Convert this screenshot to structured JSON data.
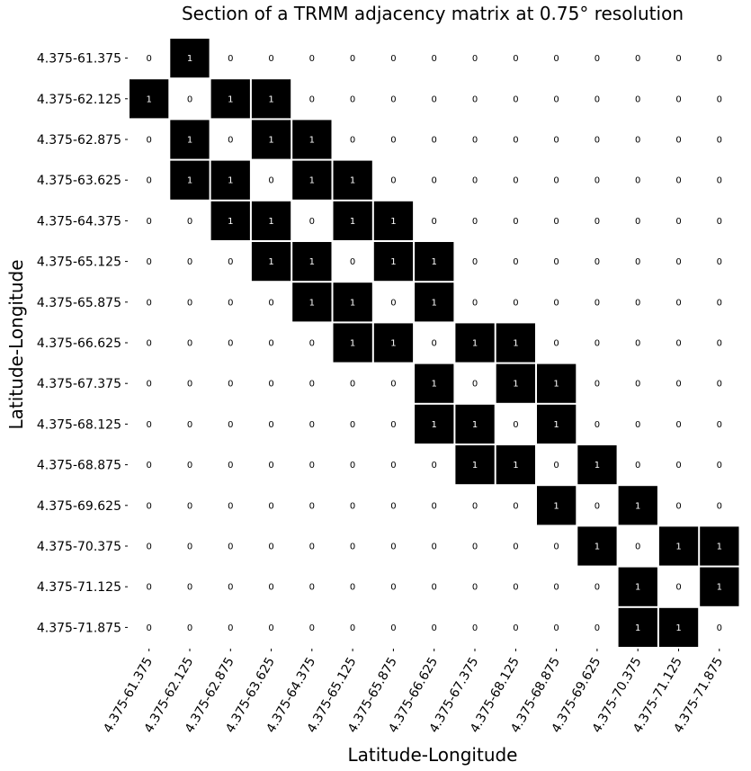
{
  "chart_data": {
    "type": "heatmap",
    "title": "Section of a TRMM adjacency matrix at 0.75° resolution",
    "xlabel": "Latitude-Longitude",
    "ylabel": "Latitude-Longitude",
    "labels": [
      "4.375-61.375",
      "4.375-62.125",
      "4.375-62.875",
      "4.375-63.625",
      "4.375-64.375",
      "4.375-65.125",
      "4.375-65.875",
      "4.375-66.625",
      "4.375-67.375",
      "4.375-68.125",
      "4.375-68.875",
      "4.375-69.625",
      "4.375-70.375",
      "4.375-71.125",
      "4.375-71.875"
    ],
    "matrix": [
      [
        0,
        1,
        0,
        0,
        0,
        0,
        0,
        0,
        0,
        0,
        0,
        0,
        0,
        0,
        0
      ],
      [
        1,
        0,
        1,
        1,
        0,
        0,
        0,
        0,
        0,
        0,
        0,
        0,
        0,
        0,
        0
      ],
      [
        0,
        1,
        0,
        1,
        1,
        0,
        0,
        0,
        0,
        0,
        0,
        0,
        0,
        0,
        0
      ],
      [
        0,
        1,
        1,
        0,
        1,
        1,
        0,
        0,
        0,
        0,
        0,
        0,
        0,
        0,
        0
      ],
      [
        0,
        0,
        1,
        1,
        0,
        1,
        1,
        0,
        0,
        0,
        0,
        0,
        0,
        0,
        0
      ],
      [
        0,
        0,
        0,
        1,
        1,
        0,
        1,
        1,
        0,
        0,
        0,
        0,
        0,
        0,
        0
      ],
      [
        0,
        0,
        0,
        0,
        1,
        1,
        0,
        1,
        0,
        0,
        0,
        0,
        0,
        0,
        0
      ],
      [
        0,
        0,
        0,
        0,
        0,
        1,
        1,
        0,
        1,
        1,
        0,
        0,
        0,
        0,
        0
      ],
      [
        0,
        0,
        0,
        0,
        0,
        0,
        0,
        1,
        0,
        1,
        1,
        0,
        0,
        0,
        0
      ],
      [
        0,
        0,
        0,
        0,
        0,
        0,
        0,
        1,
        1,
        0,
        1,
        0,
        0,
        0,
        0
      ],
      [
        0,
        0,
        0,
        0,
        0,
        0,
        0,
        0,
        1,
        1,
        0,
        1,
        0,
        0,
        0
      ],
      [
        0,
        0,
        0,
        0,
        0,
        0,
        0,
        0,
        0,
        0,
        1,
        0,
        1,
        0,
        0
      ],
      [
        0,
        0,
        0,
        0,
        0,
        0,
        0,
        0,
        0,
        0,
        0,
        1,
        0,
        1,
        1
      ],
      [
        0,
        0,
        0,
        0,
        0,
        0,
        0,
        0,
        0,
        0,
        0,
        0,
        1,
        0,
        1
      ],
      [
        0,
        0,
        0,
        0,
        0,
        0,
        0,
        0,
        0,
        0,
        0,
        0,
        1,
        1,
        0
      ]
    ],
    "colors": {
      "one_fill": "#000000",
      "one_text": "#ffffff",
      "zero_fill": "#ffffff",
      "zero_text": "#000000"
    },
    "grid": false,
    "legend": "none"
  }
}
